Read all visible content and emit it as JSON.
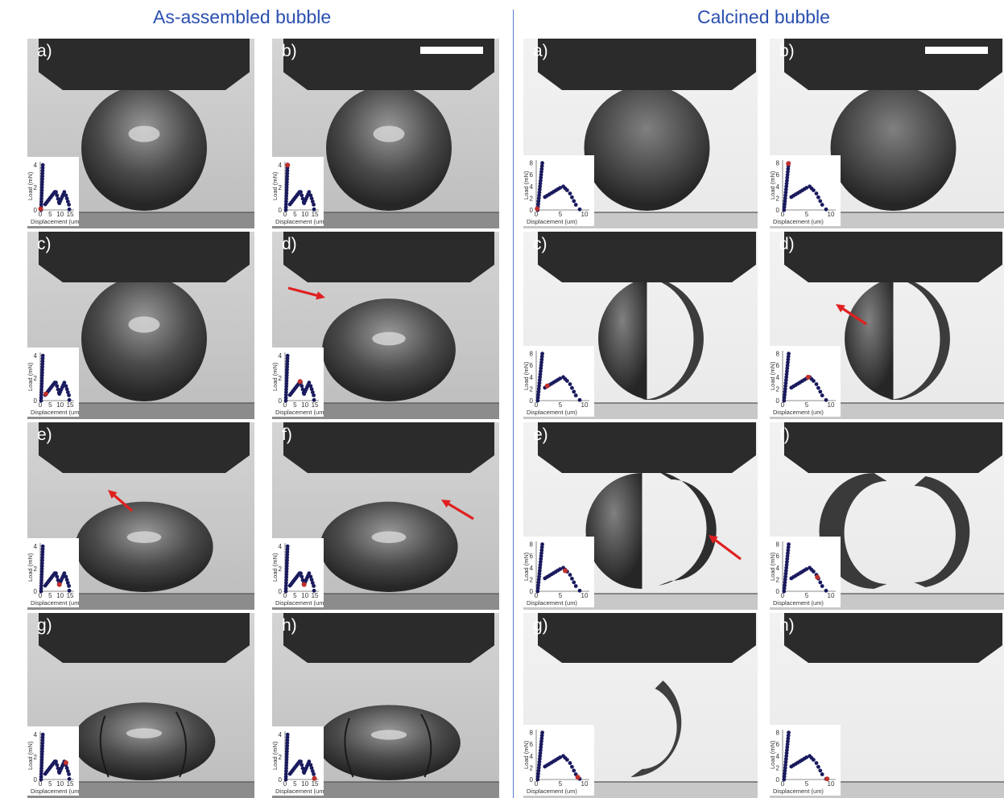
{
  "titles": {
    "left": "As-assembled bubble",
    "right": "Calcined bubble"
  },
  "panels": {
    "assembled": [
      {
        "label": "a)",
        "marker": "start",
        "scale_bar": false,
        "arrow": false
      },
      {
        "label": "b)",
        "marker": "peak",
        "scale_bar": true,
        "arrow": false
      },
      {
        "label": "c)",
        "marker": "first-drop",
        "scale_bar": false,
        "arrow": false
      },
      {
        "label": "d)",
        "marker": "second-rise",
        "scale_bar": false,
        "arrow": true
      },
      {
        "label": "e)",
        "marker": "second-drop",
        "scale_bar": false,
        "arrow": true
      },
      {
        "label": "f)",
        "marker": "second-drop",
        "scale_bar": false,
        "arrow": true
      },
      {
        "label": "g)",
        "marker": "third-rise",
        "scale_bar": false,
        "arrow": false
      },
      {
        "label": "h)",
        "marker": "end",
        "scale_bar": false,
        "arrow": false
      }
    ],
    "calcined": [
      {
        "label": "a)",
        "marker": "start",
        "scale_bar": false,
        "arrow": false
      },
      {
        "label": "b)",
        "marker": "peak",
        "scale_bar": true,
        "arrow": false
      },
      {
        "label": "c)",
        "marker": "first-drop",
        "scale_bar": false,
        "arrow": false
      },
      {
        "label": "d)",
        "marker": "second-rise",
        "scale_bar": false,
        "arrow": true
      },
      {
        "label": "e)",
        "marker": "second-peak",
        "scale_bar": false,
        "arrow": true
      },
      {
        "label": "f)",
        "marker": "second-drop",
        "scale_bar": false,
        "arrow": false
      },
      {
        "label": "g)",
        "marker": "tail",
        "scale_bar": false,
        "arrow": false
      },
      {
        "label": "h)",
        "marker": "end",
        "scale_bar": false,
        "arrow": false
      }
    ]
  },
  "insets": {
    "assembled": {
      "xlabel": "Displacement (um)",
      "ylabel": "Load (mN)",
      "xticks": [
        "0",
        "5",
        "10",
        "15"
      ],
      "yticks": [
        "0",
        "2",
        "4"
      ],
      "xlim": [
        0,
        17
      ],
      "ylim": [
        0,
        4.3
      ]
    },
    "calcined": {
      "xlabel": "Displacement (um)",
      "ylabel": "Load (mN)",
      "xticks": [
        "0",
        "5",
        "10"
      ],
      "yticks": [
        "0",
        "2",
        "4",
        "6",
        "8"
      ],
      "xlim": [
        0,
        11
      ],
      "ylim": [
        0,
        8.5
      ]
    }
  },
  "colors": {
    "title": "#2a4fb0",
    "data_points": "#1a1a5e",
    "highlight": "#c0302b",
    "arrow": "#e02020"
  }
}
